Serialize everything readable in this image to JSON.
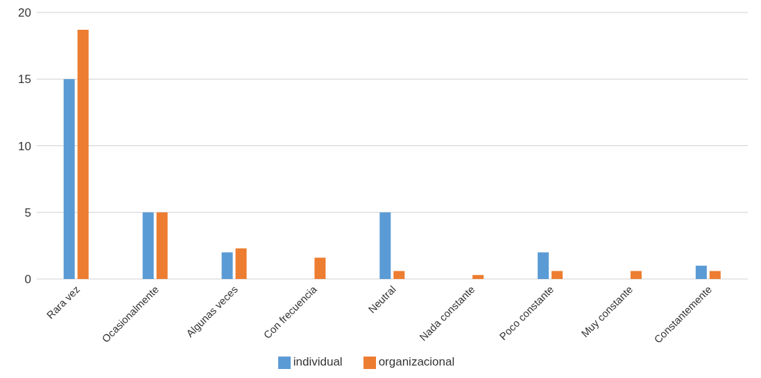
{
  "chart_data": {
    "type": "bar",
    "categories": [
      "Rara vez",
      "Ocasionalmente",
      "Algunas veces",
      "Con frecuencia",
      "Neutral",
      "Nada constante",
      "Poco constante",
      "Muy constante",
      "Constantemente"
    ],
    "series": [
      {
        "name": "individual",
        "color": "#5b9bd5",
        "values": [
          15,
          5,
          2,
          0,
          5,
          0,
          2,
          0,
          1
        ]
      },
      {
        "name": "organizacional",
        "color": "#ed7d31",
        "values": [
          18.7,
          5,
          2.3,
          1.6,
          0.6,
          0.3,
          0.6,
          0.6,
          0.6
        ]
      }
    ],
    "ylim": [
      0,
      20
    ],
    "yticks": [
      0,
      5,
      10,
      15,
      20
    ],
    "grid": "y",
    "legend": "bottom"
  }
}
